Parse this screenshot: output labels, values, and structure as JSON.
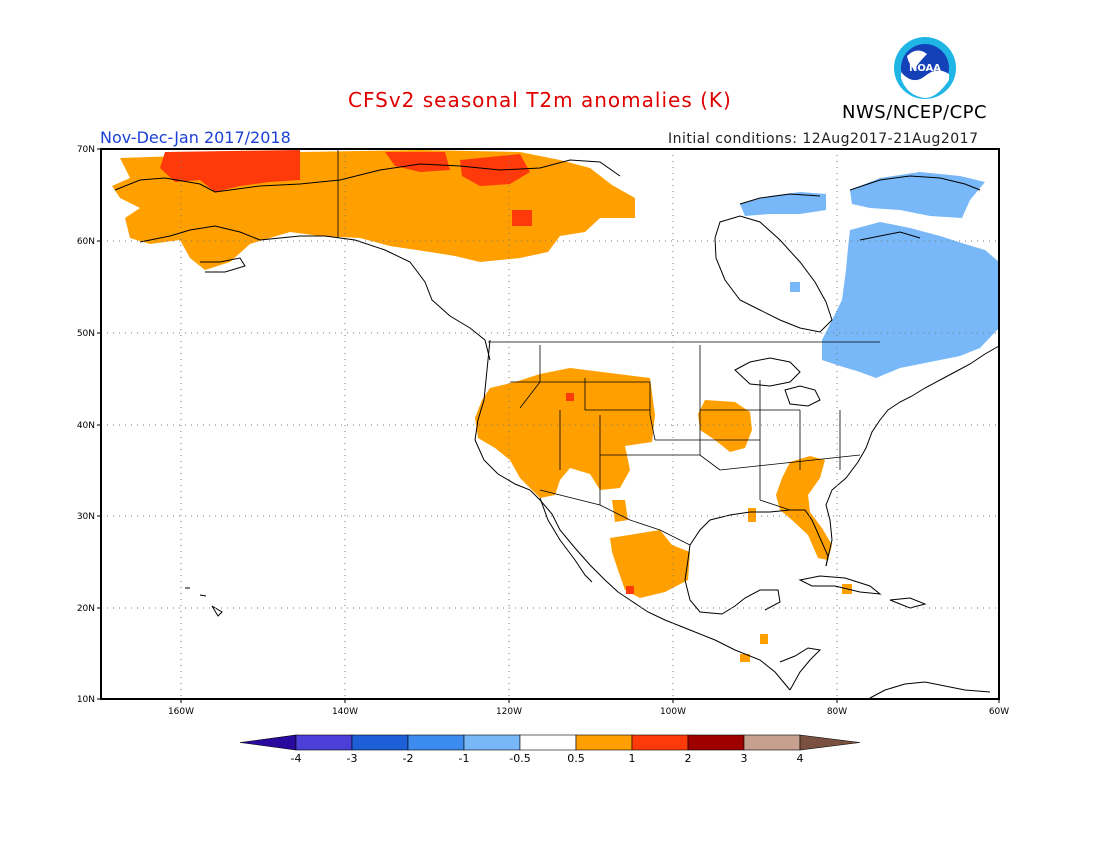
{
  "header": {
    "title": "CFSv2 seasonal T2m anomalies (K)",
    "period": "Nov-Dec-Jan 2017/2018",
    "initial_conditions": "Initial conditions: 12Aug2017-21Aug2017",
    "agency": "NWS/NCEP/CPC",
    "logo_text": "NOAA"
  },
  "axes": {
    "lat_labels": [
      "70N",
      "60N",
      "50N",
      "40N",
      "30N",
      "20N",
      "10N"
    ],
    "lon_labels": [
      "160W",
      "140W",
      "120W",
      "100W",
      "80W",
      "60W"
    ]
  },
  "colorbar": {
    "labels": [
      "-4",
      "-3",
      "-2",
      "-1",
      "-0.5",
      "0.5",
      "1",
      "2",
      "3",
      "4"
    ],
    "colors": [
      "#2a0a9e",
      "#4a3fd6",
      "#1c5fd6",
      "#3c8cf0",
      "#78b8f8",
      "#ffffff",
      "#ffa000",
      "#ff3a0a",
      "#9e0000",
      "#c8a090",
      "#7a5040"
    ]
  },
  "legend": {
    "warm_colors": {
      "0.5-1": "#ffa000",
      "1-2": "#ff3a0a"
    },
    "cool_colors": {
      "-1 to -0.5": "#78b8f8"
    }
  }
}
